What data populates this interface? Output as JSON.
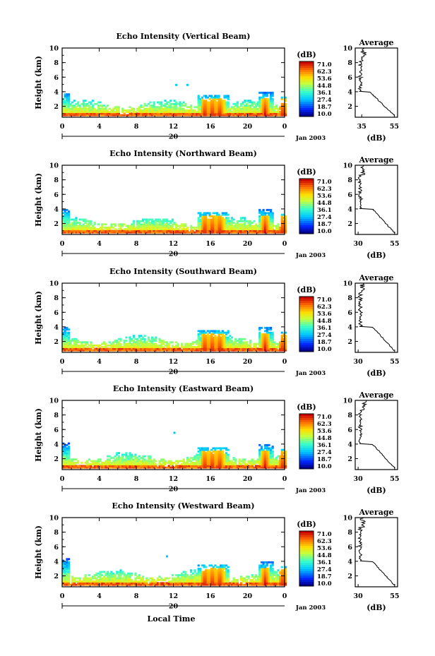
{
  "chart_data": [
    {
      "type": "heatmap",
      "title": "Echo Intensity (Vertical Beam)",
      "ylabel": "Height (km)",
      "xlabel": "",
      "x_ticks": [
        "0",
        "4",
        "8",
        "12",
        "16",
        "20",
        "0"
      ],
      "y_ticks": [
        "2",
        "4",
        "6",
        "8",
        "10"
      ],
      "date_day": "20",
      "date_label": "Jan 2003",
      "xlim": [
        0,
        24
      ],
      "ylim": [
        0.5,
        10
      ],
      "colorbar": {
        "unit": "(dB)",
        "ticks": [
          "71.0",
          "62.3",
          "53.6",
          "44.8",
          "36.1",
          "27.4",
          "18.7",
          "10.0"
        ],
        "range": [
          10,
          71
        ]
      },
      "profile": {
        "title": "Average",
        "xlabel": "(dB)",
        "x_ticks": [
          "35",
          "55"
        ],
        "xlim": [
          31,
          57
        ],
        "y_ticks": [
          "2",
          "4",
          "6",
          "8",
          "10"
        ]
      }
    },
    {
      "type": "heatmap",
      "title": "Echo Intensity (Northward Beam)",
      "ylabel": "Height (km)",
      "xlabel": "",
      "x_ticks": [
        "0",
        "4",
        "8",
        "12",
        "16",
        "20",
        "0"
      ],
      "y_ticks": [
        "2",
        "4",
        "6",
        "8",
        "10"
      ],
      "date_day": "20",
      "date_label": "Jan 2003",
      "xlim": [
        0,
        24
      ],
      "ylim": [
        0.5,
        10
      ],
      "colorbar": {
        "unit": "(dB)",
        "ticks": [
          "71.0",
          "62.3",
          "53.6",
          "44.8",
          "36.1",
          "27.4",
          "18.7",
          "10.0"
        ],
        "range": [
          10,
          71
        ]
      },
      "profile": {
        "title": "Average",
        "xlabel": "(dB)",
        "x_ticks": [
          "30",
          "55"
        ],
        "xlim": [
          28,
          57
        ],
        "y_ticks": [
          "2",
          "4",
          "6",
          "8",
          "10"
        ]
      }
    },
    {
      "type": "heatmap",
      "title": "Echo Intensity (Southward Beam)",
      "ylabel": "Height (km)",
      "xlabel": "",
      "x_ticks": [
        "0",
        "4",
        "8",
        "12",
        "16",
        "20",
        "0"
      ],
      "y_ticks": [
        "2",
        "4",
        "6",
        "8",
        "10"
      ],
      "date_day": "20",
      "date_label": "Jan 2003",
      "xlim": [
        0,
        24
      ],
      "ylim": [
        0.5,
        10
      ],
      "colorbar": {
        "unit": "(dB)",
        "ticks": [
          "71.0",
          "62.3",
          "53.6",
          "44.8",
          "36.1",
          "27.4",
          "18.7",
          "10.0"
        ],
        "range": [
          10,
          71
        ]
      },
      "profile": {
        "title": "Average",
        "xlabel": "(dB)",
        "x_ticks": [
          "30",
          "55"
        ],
        "xlim": [
          28,
          57
        ],
        "y_ticks": [
          "2",
          "4",
          "6",
          "8",
          "10"
        ]
      }
    },
    {
      "type": "heatmap",
      "title": "Echo Intensity (Eastward Beam)",
      "ylabel": "Height (km)",
      "xlabel": "",
      "x_ticks": [
        "0",
        "4",
        "8",
        "12",
        "16",
        "20",
        "0"
      ],
      "y_ticks": [
        "2",
        "4",
        "6",
        "8",
        "10"
      ],
      "date_day": "20",
      "date_label": "Jan 2003",
      "xlim": [
        0,
        24
      ],
      "ylim": [
        0.5,
        10
      ],
      "colorbar": {
        "unit": "(dB)",
        "ticks": [
          "71.0",
          "62.3",
          "53.6",
          "44.8",
          "36.1",
          "27.4",
          "18.7",
          "10.0"
        ],
        "range": [
          10,
          71
        ]
      },
      "profile": {
        "title": "Average",
        "xlabel": "(dB)",
        "x_ticks": [
          "30",
          "55"
        ],
        "xlim": [
          28,
          57
        ],
        "y_ticks": [
          "2",
          "4",
          "6",
          "8",
          "10"
        ]
      }
    },
    {
      "type": "heatmap",
      "title": "Echo Intensity (Westward Beam)",
      "ylabel": "Height (km)",
      "xlabel": "Local Time",
      "x_ticks": [
        "0",
        "4",
        "8",
        "12",
        "16",
        "20",
        "0"
      ],
      "y_ticks": [
        "2",
        "4",
        "6",
        "8",
        "10"
      ],
      "date_day": "20",
      "date_label": "Jan 2003",
      "xlim": [
        0,
        24
      ],
      "ylim": [
        0.5,
        10
      ],
      "colorbar": {
        "unit": "(dB)",
        "ticks": [
          "71.0",
          "62.3",
          "53.6",
          "44.8",
          "36.1",
          "27.4",
          "18.7",
          "10.0"
        ],
        "range": [
          10,
          71
        ]
      },
      "profile": {
        "title": "Average",
        "xlabel": "(dB)",
        "x_ticks": [
          "30",
          "55"
        ],
        "xlim": [
          28,
          57
        ],
        "y_ticks": [
          "2",
          "4",
          "6",
          "8",
          "10"
        ]
      }
    }
  ]
}
